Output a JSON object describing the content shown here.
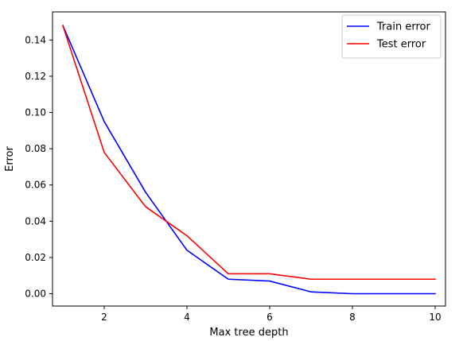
{
  "chart_data": {
    "type": "line",
    "title": "",
    "xlabel": "Max tree depth",
    "ylabel": "Error",
    "xlim": [
      0.75,
      10.25
    ],
    "ylim": [
      -0.0068,
      0.1555
    ],
    "x_ticks": [
      2,
      4,
      6,
      8,
      10
    ],
    "x_tick_labels": [
      "2",
      "4",
      "6",
      "8",
      "10"
    ],
    "y_ticks": [
      0.0,
      0.02,
      0.04,
      0.06,
      0.08,
      0.1,
      0.12,
      0.14
    ],
    "y_tick_labels": [
      "0.00",
      "0.02",
      "0.04",
      "0.06",
      "0.08",
      "0.10",
      "0.12",
      "0.14"
    ],
    "grid": false,
    "legend_position": "top-right",
    "x": [
      1,
      2,
      3,
      4,
      5,
      6,
      7,
      8,
      9,
      10
    ],
    "series": [
      {
        "name": "Train error",
        "color": "#0000ff",
        "values": [
          0.148,
          0.095,
          0.056,
          0.024,
          0.008,
          0.007,
          0.001,
          0.0,
          0.0,
          0.0
        ]
      },
      {
        "name": "Test error",
        "color": "#ff0000",
        "values": [
          0.148,
          0.078,
          0.048,
          0.032,
          0.011,
          0.011,
          0.008,
          0.008,
          0.008,
          0.008
        ]
      }
    ]
  }
}
